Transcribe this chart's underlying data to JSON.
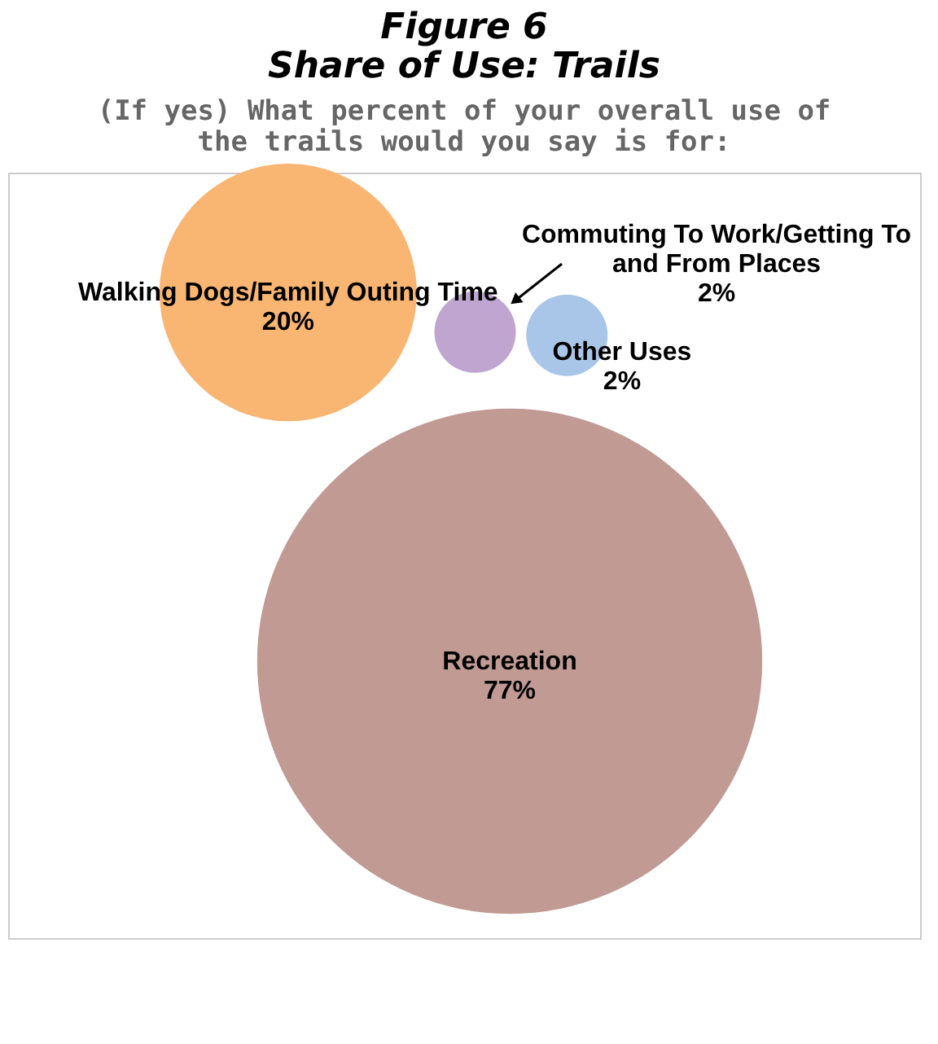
{
  "chart_data": {
    "type": "other",
    "title": "Figure 6\nShare of Use: Trails",
    "subtitle": "(If yes) What percent of your overall use of the trails would you say is for:",
    "categories": [
      "Walking Dogs/Family Outing Time",
      "Commuting To Work/Getting To and From Places",
      "Other Uses",
      "Recreation"
    ],
    "values": [
      20,
      2,
      2,
      77
    ],
    "value_labels": [
      "20%",
      "2%",
      "2%",
      "77%"
    ],
    "colors": [
      "#f9b572",
      "#bfa5cf",
      "#a9c5e8",
      "#c09a93"
    ]
  }
}
